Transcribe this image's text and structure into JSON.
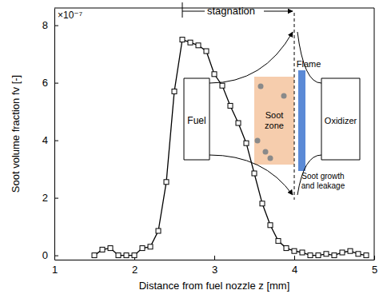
{
  "chart_data": {
    "type": "line",
    "x_label": "Distance from fuel nozzle z [mm]",
    "y_label": "Soot volume fraction fv [-]",
    "x": [
      1.5,
      1.6,
      1.7,
      1.8,
      1.9,
      2.0,
      2.1,
      2.2,
      2.3,
      2.4,
      2.5,
      2.6,
      2.7,
      2.8,
      2.9,
      3.0,
      3.1,
      3.2,
      3.3,
      3.4,
      3.5,
      3.6,
      3.7,
      3.8,
      3.9,
      4.0,
      4.1,
      4.2,
      4.3,
      4.4,
      4.5,
      4.6,
      4.7,
      4.8,
      4.9
    ],
    "values": [
      0,
      0.2,
      0.25,
      0,
      0,
      0,
      0.25,
      0.3,
      0.85,
      2.55,
      5.7,
      7.5,
      7.4,
      7.3,
      7.1,
      6.3,
      5.9,
      5.2,
      4.6,
      3.9,
      2.85,
      1.8,
      1.05,
      0.5,
      0.25,
      0.15,
      0.1,
      0,
      0,
      0.05,
      0,
      0.1,
      0.15,
      0.05,
      0
    ],
    "color": "#000000",
    "marker": "square",
    "xlim": [
      1,
      5
    ],
    "xticks": [
      1,
      2,
      3,
      4,
      5
    ],
    "ylim": [
      -0.15,
      8.6
    ],
    "yticks": [
      0,
      2,
      4,
      6,
      8
    ],
    "annotations": {
      "multiplier": "×10⁻⁷",
      "stagnation": "stagnation",
      "fuel": "Fuel",
      "oxidizer": "Oxidizer",
      "soot_zone": [
        "Soot",
        "zone"
      ],
      "flame": "Flame",
      "soot_leak": [
        "Soot growth",
        "and leakage"
      ]
    }
  }
}
